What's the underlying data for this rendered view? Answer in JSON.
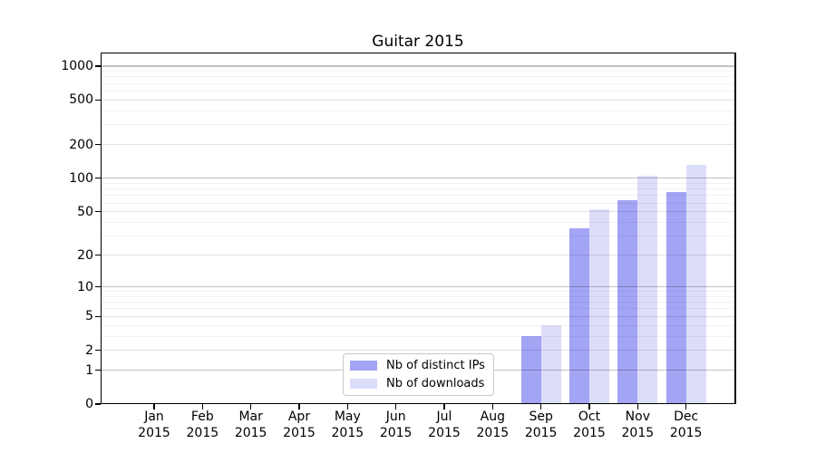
{
  "chart_data": {
    "type": "bar",
    "title": "Guitar 2015",
    "categories": [
      "Jan 2015",
      "Feb 2015",
      "Mar 2015",
      "Apr 2015",
      "May 2015",
      "Jun 2015",
      "Jul 2015",
      "Aug 2015",
      "Sep 2015",
      "Oct 2015",
      "Nov 2015",
      "Dec 2015"
    ],
    "series": [
      {
        "name": "Nb of distinct IPs",
        "color": "#a3a4f4",
        "values": [
          0,
          0,
          0,
          0,
          0,
          0,
          0,
          0,
          3,
          35,
          64,
          75
        ]
      },
      {
        "name": "Nb of downloads",
        "color": "#dcddf9",
        "values": [
          0,
          0,
          0,
          0,
          0,
          0,
          0,
          0,
          4,
          53,
          105,
          132
        ]
      }
    ],
    "yscale": "log1p",
    "yticks": [
      0,
      1,
      2,
      5,
      10,
      20,
      50,
      100,
      200,
      500,
      1000
    ],
    "ylim": [
      0,
      1300
    ],
    "xlabel": "",
    "ylabel": "",
    "grid": "horizontal",
    "legend_position": "lower center",
    "background_color": "#ffffff",
    "text_color": "#000000"
  }
}
